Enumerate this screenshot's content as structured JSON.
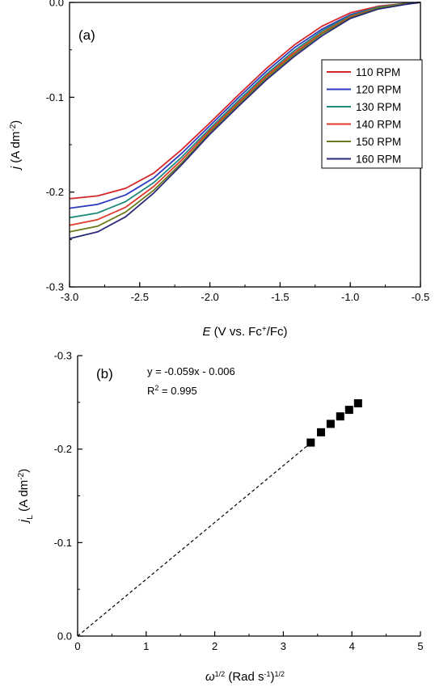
{
  "chart_data": [
    {
      "panel": "(a)",
      "type": "line",
      "xlabel": {
        "var": "E",
        "unit": " (V vs. Fc",
        "sup": "+",
        "rest": "/Fc)"
      },
      "ylabel": {
        "var": "j",
        "unit": " (A dm",
        "sup": "-2",
        "rest": ")"
      },
      "xlim": [
        -3.0,
        -0.5
      ],
      "ylim": [
        -0.3,
        0.0
      ],
      "xticks": [
        -3.0,
        -2.5,
        -2.0,
        -1.5,
        -1.0,
        -0.5
      ],
      "yticks": [
        0.0,
        -0.1,
        -0.2,
        -0.3
      ],
      "xtick_labels": [
        "-3.0",
        "-2.5",
        "-2.0",
        "-1.5",
        "-1.0",
        "-0.5"
      ],
      "ytick_labels": [
        "0.0",
        "-0.1",
        "-0.2",
        "-0.3"
      ],
      "reference_line": {
        "y": 0.0,
        "style": "dotted"
      },
      "legend_position": "right",
      "x": [
        -3.0,
        -2.8,
        -2.6,
        -2.4,
        -2.2,
        -2.0,
        -1.8,
        -1.6,
        -1.4,
        -1.2,
        -1.0,
        -0.8,
        -0.6,
        -0.5
      ],
      "series": [
        {
          "name": "110 RPM",
          "color": "#d62728",
          "values": [
            -0.207,
            -0.204,
            -0.196,
            -0.18,
            -0.155,
            -0.127,
            -0.098,
            -0.07,
            -0.045,
            -0.025,
            -0.011,
            -0.004,
            -0.001,
            0.0
          ]
        },
        {
          "name": "120 RPM",
          "color": "#2b3bbf",
          "values": [
            -0.217,
            -0.213,
            -0.203,
            -0.185,
            -0.159,
            -0.13,
            -0.101,
            -0.073,
            -0.048,
            -0.028,
            -0.013,
            -0.005,
            -0.001,
            0.0
          ]
        },
        {
          "name": "130 RPM",
          "color": "#1f8a7a",
          "values": [
            -0.227,
            -0.222,
            -0.21,
            -0.19,
            -0.163,
            -0.133,
            -0.104,
            -0.076,
            -0.051,
            -0.03,
            -0.014,
            -0.005,
            -0.001,
            0.0
          ]
        },
        {
          "name": "140 RPM",
          "color": "#e03a2a",
          "values": [
            -0.235,
            -0.229,
            -0.216,
            -0.194,
            -0.166,
            -0.135,
            -0.106,
            -0.078,
            -0.053,
            -0.032,
            -0.015,
            -0.006,
            -0.001,
            0.0
          ]
        },
        {
          "name": "150 RPM",
          "color": "#6b7a1a",
          "values": [
            -0.242,
            -0.236,
            -0.221,
            -0.198,
            -0.169,
            -0.137,
            -0.108,
            -0.08,
            -0.055,
            -0.033,
            -0.016,
            -0.006,
            -0.001,
            0.0
          ]
        },
        {
          "name": "160 RPM",
          "color": "#2a2a7a",
          "values": [
            -0.249,
            -0.242,
            -0.226,
            -0.201,
            -0.171,
            -0.139,
            -0.11,
            -0.082,
            -0.057,
            -0.035,
            -0.017,
            -0.007,
            -0.002,
            0.0
          ]
        }
      ]
    },
    {
      "panel": "(b)",
      "type": "scatter",
      "xlabel": {
        "var": "ω",
        "sup": "1/2",
        "unit": " (Rad s",
        "sup2": "-1",
        "rest": ")",
        "sup3": "1/2"
      },
      "ylabel": {
        "var": "j",
        "sub": "L",
        "unit": " (A dm",
        "sup": "-2",
        "rest": ")"
      },
      "xlim": [
        0,
        5
      ],
      "ylim": [
        0.0,
        -0.3
      ],
      "xticks": [
        0,
        1,
        2,
        3,
        4,
        5
      ],
      "yticks": [
        0.0,
        -0.1,
        -0.2,
        -0.3
      ],
      "xtick_labels": [
        "0",
        "1",
        "2",
        "3",
        "4",
        "5"
      ],
      "ytick_labels": [
        "0.0",
        "-0.1",
        "-0.2",
        "-0.3"
      ],
      "equation": "y = -0.059x - 0.006",
      "r2_prefix": "R",
      "r2_sup": "2",
      "r2_value": " = 0.995",
      "fit": {
        "slope": -0.059,
        "intercept": -0.006,
        "x_range": [
          0,
          3.4
        ],
        "style": "dashed"
      },
      "points": [
        {
          "x": 3.4,
          "y": -0.207
        },
        {
          "x": 3.55,
          "y": -0.218
        },
        {
          "x": 3.69,
          "y": -0.227
        },
        {
          "x": 3.83,
          "y": -0.235
        },
        {
          "x": 3.96,
          "y": -0.242
        },
        {
          "x": 4.09,
          "y": -0.249
        }
      ]
    }
  ]
}
